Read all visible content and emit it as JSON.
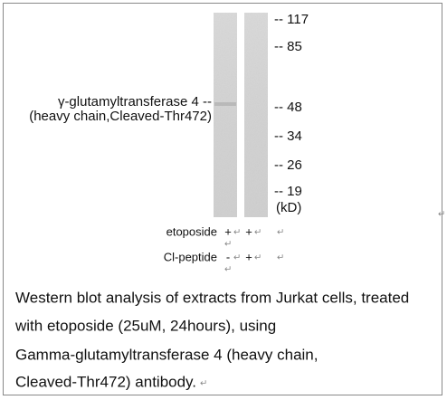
{
  "blot": {
    "markers": [
      "-- 117",
      "-- 85",
      "-- 48",
      "-- 34",
      "-- 26",
      "-- 19"
    ],
    "unit": "(kD)",
    "band_label": [
      "γ-glutamyltransferase 4 --",
      "(heavy chain,Cleaved-Thr472)"
    ],
    "treatments": [
      {
        "name": "etoposide",
        "lanes": [
          "+",
          "+"
        ]
      },
      {
        "name": "Cl-peptide",
        "lanes": [
          "-",
          "+"
        ]
      }
    ],
    "paragraph_mark": "↵"
  },
  "caption": [
    "Western blot analysis of extracts from Jurkat cells, treated",
    "with etoposide (25uM, 24hours), using",
    "Gamma-glutamyltransferase 4 (heavy chain,",
    "Cleaved-Thr472) antibody."
  ]
}
